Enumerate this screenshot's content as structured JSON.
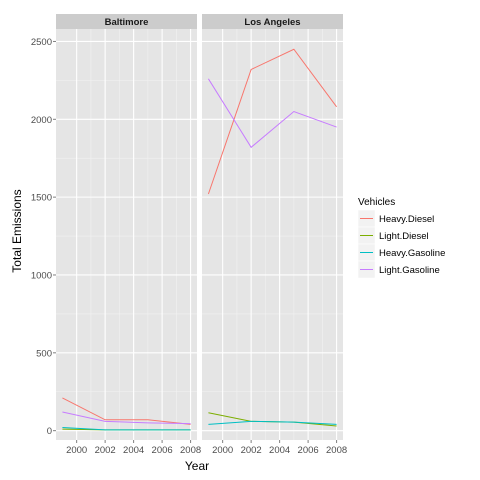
{
  "chart_data": {
    "type": "line",
    "xlabel": "Year",
    "ylabel": "Total Emissions",
    "x": [
      1999,
      2002,
      2005,
      2008
    ],
    "x_ticks": [
      2000,
      2002,
      2004,
      2006,
      2008
    ],
    "xlim": [
      1998.55,
      2008.45
    ],
    "y_ticks": [
      0,
      500,
      1000,
      1500,
      2000,
      2500
    ],
    "ylim": [
      -60,
      2580
    ],
    "grid": true,
    "legend": {
      "title": "Vehicles",
      "placement": "right",
      "entries": [
        "Heavy.Diesel",
        "Light.Diesel",
        "Heavy.Gasoline",
        "Light.Gasoline"
      ]
    },
    "colors": {
      "Heavy.Diesel": "#f8766d",
      "Light.Diesel": "#7cae00",
      "Heavy.Gasoline": "#00bfc4",
      "Light.Gasoline": "#c77cff"
    },
    "panels": [
      {
        "label": "Baltimore",
        "series": [
          {
            "name": "Heavy.Diesel",
            "values": [
              210,
              70,
              70,
              40
            ]
          },
          {
            "name": "Light.Diesel",
            "values": [
              10,
              5,
              5,
              5
            ]
          },
          {
            "name": "Heavy.Gasoline",
            "values": [
              20,
              5,
              5,
              5
            ]
          },
          {
            "name": "Light.Gasoline",
            "values": [
              120,
              60,
              50,
              45
            ]
          }
        ]
      },
      {
        "label": "Los Angeles",
        "series": [
          {
            "name": "Heavy.Diesel",
            "values": [
              1520,
              2320,
              2450,
              2080
            ]
          },
          {
            "name": "Light.Diesel",
            "values": [
              115,
              60,
              55,
              30
            ]
          },
          {
            "name": "Heavy.Gasoline",
            "values": [
              40,
              60,
              55,
              40
            ]
          },
          {
            "name": "Light.Gasoline",
            "values": [
              2260,
              1820,
              2050,
              1950
            ]
          }
        ]
      }
    ]
  }
}
